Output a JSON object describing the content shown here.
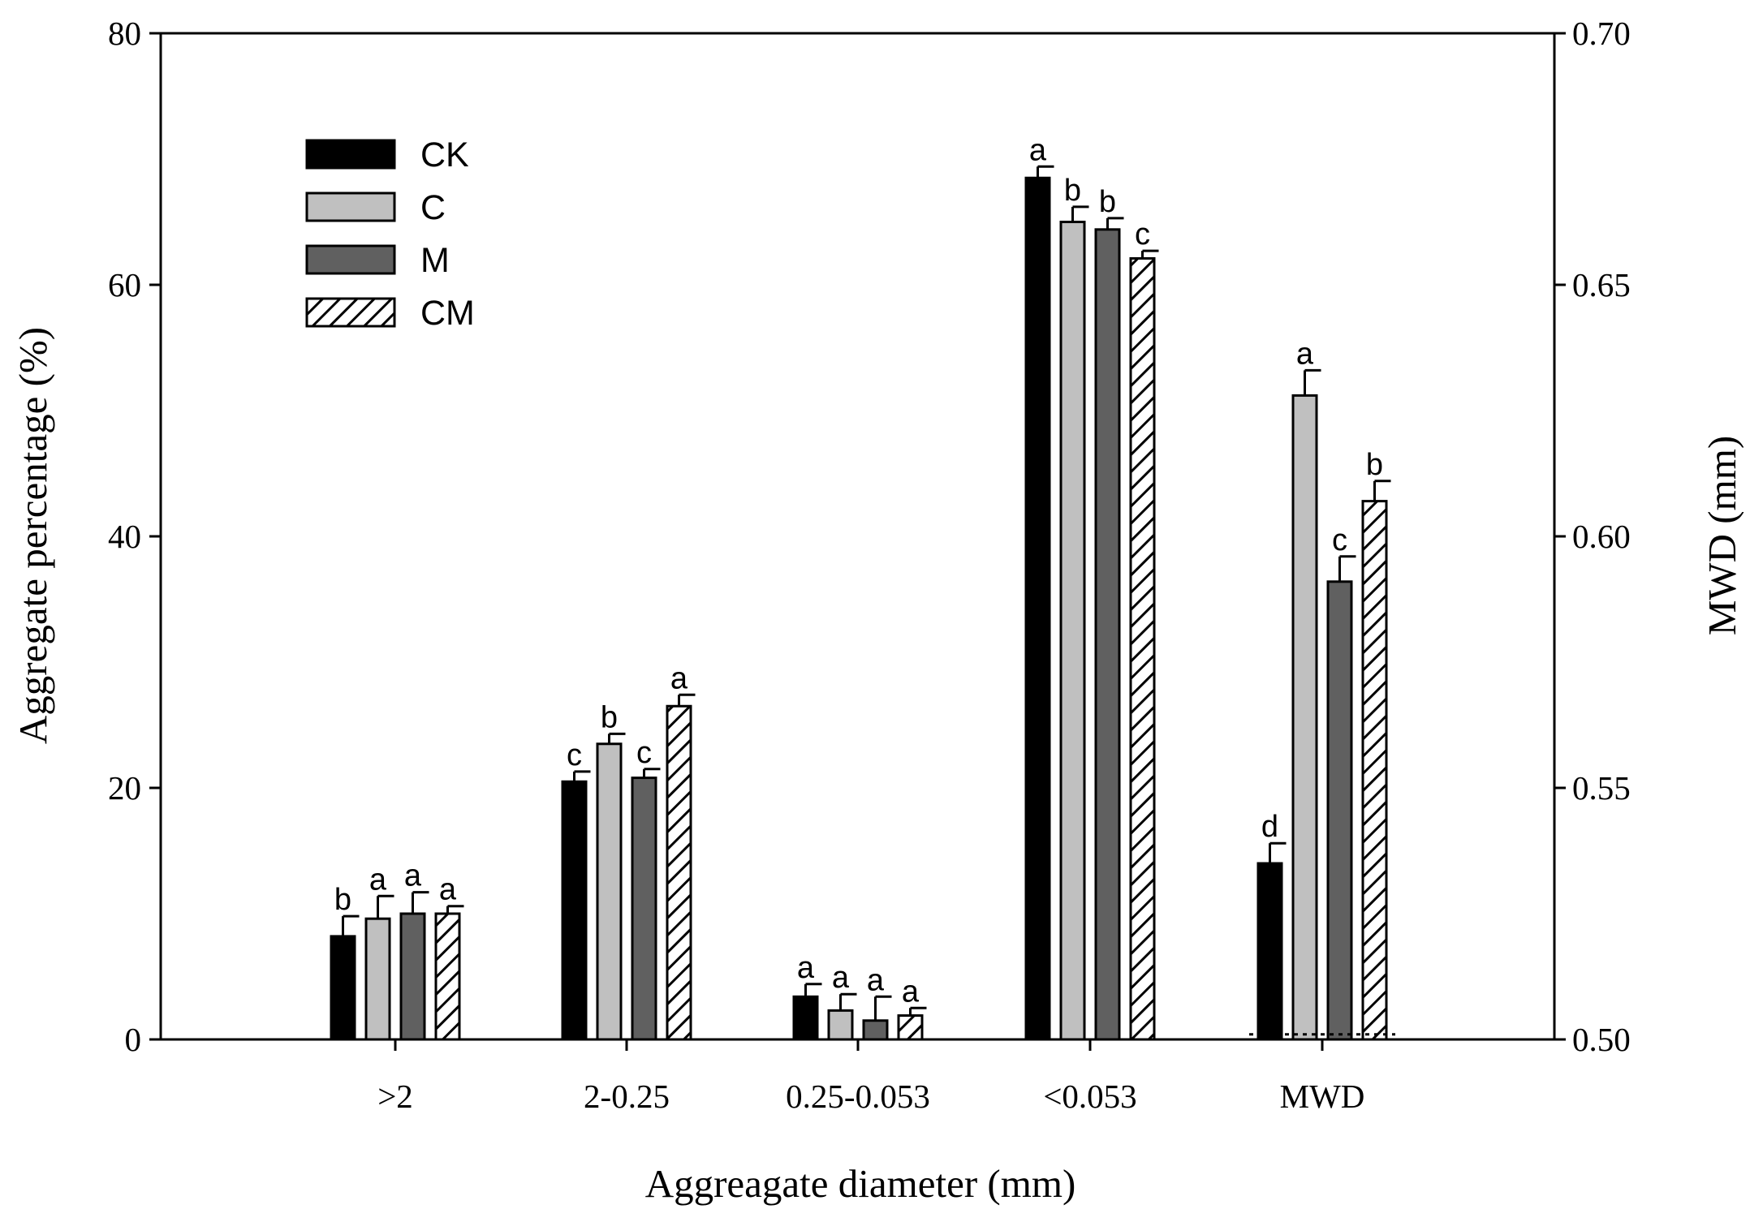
{
  "chart_data": {
    "type": "bar",
    "title": "",
    "xlabel": "Aggreagate diameter (mm)",
    "ylabel": "Aggregate percentage (%)",
    "y2label": "MWD (mm)",
    "ylim": [
      0,
      80
    ],
    "y2lim": [
      0.5,
      0.7
    ],
    "yticks": [
      "0",
      "20",
      "40",
      "60",
      "80"
    ],
    "y2ticks": [
      "0.50",
      "0.55",
      "0.60",
      "0.65",
      "0.70"
    ],
    "categories": [
      ">2",
      "2-0.25",
      "0.25-0.053",
      "<0.053",
      "MWD"
    ],
    "secondary_axis_category": "MWD",
    "series": [
      {
        "name": "CK",
        "fill": "#000000",
        "pattern": "solid",
        "values": [
          8.2,
          20.5,
          3.4,
          68.5,
          0.535
        ],
        "errors": [
          1.6,
          0.8,
          1.0,
          0.9,
          0.004
        ],
        "letters": [
          "b",
          "c",
          "a",
          "a",
          "d"
        ]
      },
      {
        "name": "C",
        "fill": "#c0c0c0",
        "pattern": "solid",
        "values": [
          9.6,
          23.5,
          2.3,
          65.0,
          0.628
        ],
        "errors": [
          1.8,
          0.8,
          1.3,
          1.2,
          0.005
        ],
        "letters": [
          "a",
          "b",
          "a",
          "b",
          "a"
        ]
      },
      {
        "name": "M",
        "fill": "#606060",
        "pattern": "solid",
        "values": [
          10.0,
          20.8,
          1.5,
          64.4,
          0.591
        ],
        "errors": [
          1.7,
          0.7,
          1.9,
          0.9,
          0.005
        ],
        "letters": [
          "a",
          "c",
          "a",
          "b",
          "c"
        ]
      },
      {
        "name": "CM",
        "fill": "#ffffff",
        "pattern": "hatch",
        "values": [
          10.0,
          26.5,
          1.9,
          62.1,
          0.607
        ],
        "errors": [
          0.6,
          0.9,
          0.6,
          0.6,
          0.004
        ],
        "letters": [
          "a",
          "a",
          "a",
          "c",
          "b"
        ]
      }
    ],
    "reference_line": {
      "axis": "y2",
      "value": 0.501,
      "style": "dotted",
      "category": "MWD"
    },
    "legend": {
      "position": "top-left",
      "entries": [
        "CK",
        "C",
        "M",
        "CM"
      ]
    },
    "grid": false
  }
}
